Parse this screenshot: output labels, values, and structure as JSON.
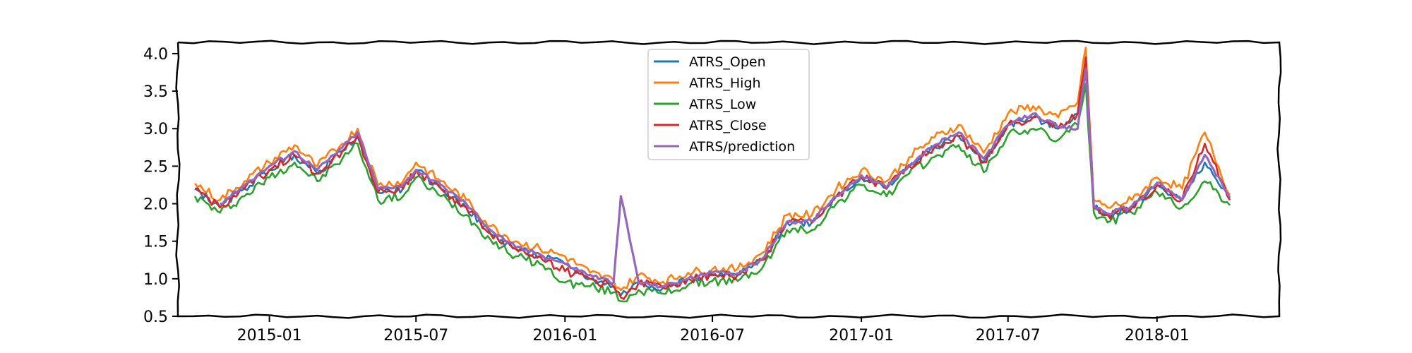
{
  "chart_data": {
    "type": "line",
    "title": "",
    "xlabel": "",
    "ylabel": "",
    "xlim": [
      "2014-09-10",
      "2018-06-01"
    ],
    "ylim": [
      0.5,
      4.15
    ],
    "yticks": [
      "0.5",
      "1.0",
      "1.5",
      "2.0",
      "2.5",
      "3.0",
      "3.5",
      "4.0"
    ],
    "xticks": [
      {
        "date": "2015-01-01",
        "label": "2015-01"
      },
      {
        "date": "2015-07-01",
        "label": "2015-07"
      },
      {
        "date": "2016-01-01",
        "label": "2016-01"
      },
      {
        "date": "2016-07-01",
        "label": "2016-07"
      },
      {
        "date": "2017-01-01",
        "label": "2017-01"
      },
      {
        "date": "2017-07-01",
        "label": "2017-07"
      },
      {
        "date": "2018-01-01",
        "label": "2018-01"
      }
    ],
    "legend_position": "upper center",
    "grid": false,
    "x": [
      "2014-10-01",
      "2014-11-01",
      "2014-12-01",
      "2015-01-01",
      "2015-02-01",
      "2015-03-01",
      "2015-04-01",
      "2015-04-20",
      "2015-05-15",
      "2015-06-15",
      "2015-07-01",
      "2015-08-01",
      "2015-09-01",
      "2015-10-01",
      "2015-11-01",
      "2015-12-01",
      "2016-01-01",
      "2016-02-01",
      "2016-03-01",
      "2016-03-10",
      "2016-04-01",
      "2016-05-01",
      "2016-06-01",
      "2016-07-01",
      "2016-08-01",
      "2016-09-01",
      "2016-10-01",
      "2016-11-01",
      "2016-12-01",
      "2017-01-01",
      "2017-02-01",
      "2017-03-01",
      "2017-04-01",
      "2017-05-01",
      "2017-06-01",
      "2017-07-01",
      "2017-08-01",
      "2017-09-01",
      "2017-09-25",
      "2017-10-05",
      "2017-10-15",
      "2017-11-01",
      "2017-12-01",
      "2018-01-01",
      "2018-02-01",
      "2018-03-01",
      "2018-04-01"
    ],
    "series": [
      {
        "name": "ATRS_Open",
        "color": "#1f77b4",
        "values": [
          2.2,
          1.95,
          2.2,
          2.45,
          2.65,
          2.4,
          2.7,
          2.9,
          2.15,
          2.2,
          2.45,
          2.2,
          1.95,
          1.6,
          1.4,
          1.3,
          1.2,
          1.0,
          0.9,
          0.78,
          0.95,
          0.88,
          1.0,
          1.05,
          1.05,
          1.25,
          1.75,
          1.75,
          2.1,
          2.35,
          2.2,
          2.5,
          2.75,
          2.9,
          2.55,
          3.05,
          3.15,
          3.0,
          3.2,
          3.9,
          1.95,
          1.85,
          1.95,
          2.25,
          2.05,
          2.55,
          2.05
        ]
      },
      {
        "name": "ATRS_High",
        "color": "#ff7f0e",
        "values": [
          2.27,
          2.05,
          2.3,
          2.55,
          2.78,
          2.5,
          2.8,
          3.0,
          2.25,
          2.3,
          2.55,
          2.3,
          2.05,
          1.7,
          1.5,
          1.4,
          1.3,
          1.08,
          0.98,
          0.85,
          1.05,
          0.96,
          1.08,
          1.13,
          1.13,
          1.35,
          1.85,
          1.85,
          2.2,
          2.45,
          2.3,
          2.62,
          2.88,
          3.05,
          2.68,
          3.2,
          3.3,
          3.15,
          3.35,
          4.08,
          2.05,
          1.95,
          2.05,
          2.35,
          2.2,
          2.95,
          2.12
        ]
      },
      {
        "name": "ATRS_Low",
        "color": "#2ca02c",
        "values": [
          2.1,
          1.88,
          2.1,
          2.35,
          2.55,
          2.3,
          2.6,
          2.8,
          2.05,
          2.1,
          2.35,
          2.1,
          1.85,
          1.52,
          1.3,
          1.2,
          0.95,
          0.9,
          0.82,
          0.7,
          0.85,
          0.8,
          0.92,
          0.97,
          0.97,
          1.15,
          1.65,
          1.65,
          2.0,
          2.25,
          2.1,
          2.4,
          2.62,
          2.78,
          2.42,
          2.92,
          3.0,
          2.85,
          3.05,
          3.6,
          1.88,
          1.75,
          1.88,
          2.15,
          1.95,
          2.3,
          1.98
        ]
      },
      {
        "name": "ATRS_Close",
        "color": "#d62728",
        "values": [
          2.2,
          1.95,
          2.2,
          2.45,
          2.65,
          2.4,
          2.7,
          2.9,
          2.15,
          2.2,
          2.45,
          2.2,
          1.95,
          1.6,
          1.4,
          1.3,
          1.1,
          1.0,
          0.9,
          0.75,
          0.95,
          0.88,
          1.0,
          1.05,
          1.05,
          1.25,
          1.75,
          1.75,
          2.1,
          2.35,
          2.2,
          2.5,
          2.75,
          2.9,
          2.55,
          3.05,
          3.15,
          3.0,
          3.2,
          3.95,
          1.95,
          1.85,
          1.95,
          2.25,
          2.05,
          2.8,
          2.05
        ]
      },
      {
        "name": "ATRS/prediction",
        "color": "#9467bd",
        "values": [
          null,
          2.0,
          2.25,
          2.5,
          2.7,
          2.45,
          2.75,
          2.95,
          2.2,
          2.25,
          2.45,
          2.25,
          2.0,
          1.65,
          1.42,
          1.33,
          1.2,
          1.05,
          0.95,
          2.1,
          0.95,
          0.9,
          1.0,
          1.08,
          1.07,
          1.27,
          1.76,
          1.77,
          2.1,
          2.38,
          2.22,
          2.52,
          2.78,
          2.95,
          2.6,
          3.05,
          3.2,
          3.02,
          3.0,
          3.8,
          1.97,
          1.87,
          1.97,
          2.28,
          2.05,
          2.65,
          2.08
        ]
      }
    ]
  }
}
